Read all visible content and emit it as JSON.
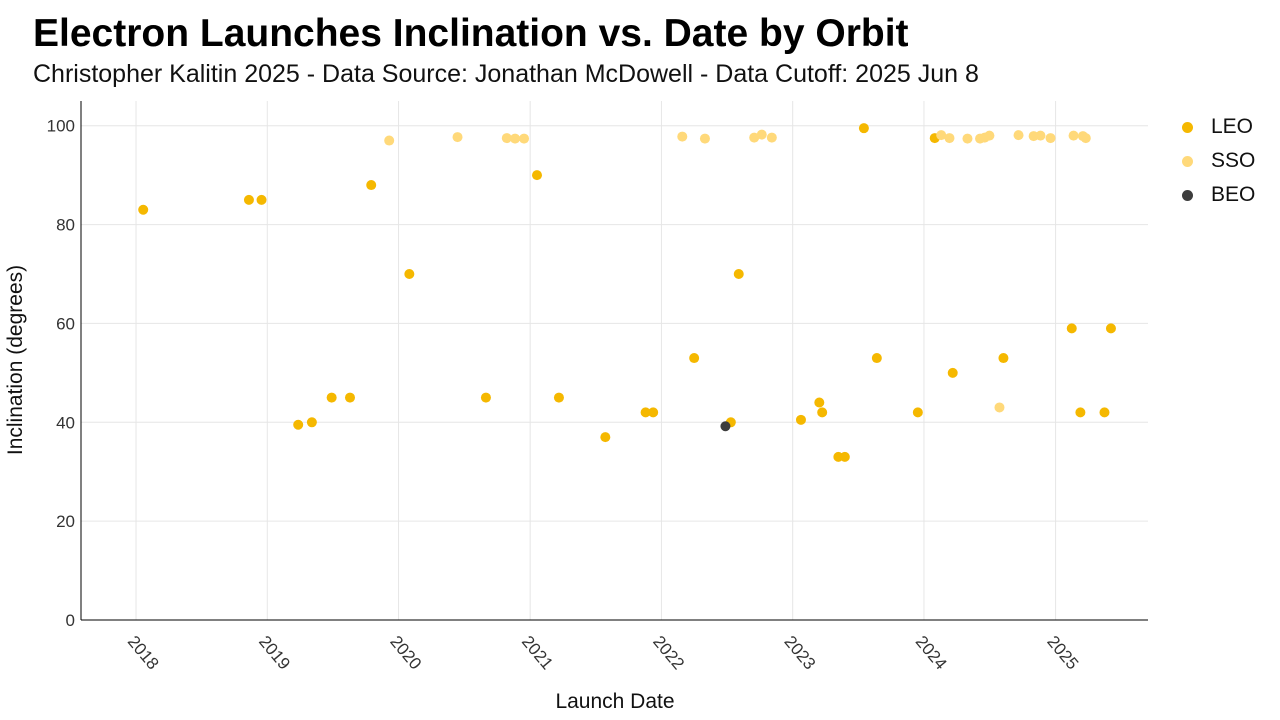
{
  "chart_data": {
    "type": "scatter",
    "title": "Electron Launches Inclination vs. Date by Orbit",
    "subtitle": "Christopher Kalitin 2025 - Data Source: Jonathan McDowell - Data Cutoff: 2025 Jun 8",
    "xlabel": "Launch Date",
    "ylabel": "Inclination (degrees)",
    "xlim": [
      "2017-08-01",
      "2025-09-15"
    ],
    "ylim": [
      0,
      105
    ],
    "x_ticks": [
      "2018",
      "2019",
      "2020",
      "2021",
      "2022",
      "2023",
      "2024",
      "2025"
    ],
    "y_ticks": [
      0,
      20,
      40,
      60,
      80,
      100
    ],
    "grid": true,
    "legend_position": "right",
    "series": [
      {
        "name": "LEO",
        "color": "#F5B800",
        "points": [
          [
            "2018-01-21",
            83
          ],
          [
            "2018-11-11",
            85
          ],
          [
            "2018-12-16",
            85
          ],
          [
            "2019-03-28",
            39.5
          ],
          [
            "2019-05-05",
            40
          ],
          [
            "2019-06-29",
            45
          ],
          [
            "2019-08-19",
            45
          ],
          [
            "2019-10-17",
            88
          ],
          [
            "2020-01-31",
            70
          ],
          [
            "2020-08-31",
            45
          ],
          [
            "2021-01-20",
            90
          ],
          [
            "2021-03-22",
            45
          ],
          [
            "2021-07-29",
            37
          ],
          [
            "2021-11-18",
            42
          ],
          [
            "2021-12-09",
            42
          ],
          [
            "2022-04-02",
            53
          ],
          [
            "2022-07-13",
            40
          ],
          [
            "2022-08-04",
            70
          ],
          [
            "2023-01-24",
            40.5
          ],
          [
            "2023-03-16",
            44
          ],
          [
            "2023-03-24",
            42
          ],
          [
            "2023-05-08",
            33
          ],
          [
            "2023-05-26",
            33
          ],
          [
            "2023-07-18",
            99.5
          ],
          [
            "2023-08-23",
            53
          ],
          [
            "2023-12-15",
            42
          ],
          [
            "2024-01-31",
            97.5
          ],
          [
            "2024-03-21",
            50
          ],
          [
            "2024-08-09",
            53
          ],
          [
            "2025-02-15",
            59
          ],
          [
            "2025-03-11",
            42
          ],
          [
            "2025-05-17",
            42
          ],
          [
            "2025-06-04",
            59
          ]
        ]
      },
      {
        "name": "SSO",
        "color": "#FFD97A",
        "points": [
          [
            "2019-12-06",
            97
          ],
          [
            "2020-06-13",
            97.7
          ],
          [
            "2020-10-28",
            97.5
          ],
          [
            "2020-11-20",
            97.4
          ],
          [
            "2020-12-15",
            97.4
          ],
          [
            "2022-02-28",
            97.8
          ],
          [
            "2022-05-02",
            97.4
          ],
          [
            "2022-09-16",
            97.6
          ],
          [
            "2022-10-07",
            98.2
          ],
          [
            "2022-11-04",
            97.6
          ],
          [
            "2024-02-18",
            98.1
          ],
          [
            "2024-03-12",
            97.5
          ],
          [
            "2024-05-01",
            97.4
          ],
          [
            "2024-06-05",
            97.4
          ],
          [
            "2024-06-18",
            97.6
          ],
          [
            "2024-07-01",
            98
          ],
          [
            "2024-07-29",
            43
          ],
          [
            "2024-09-20",
            98.1
          ],
          [
            "2024-11-01",
            97.9
          ],
          [
            "2024-11-20",
            98
          ],
          [
            "2024-12-18",
            97.5
          ],
          [
            "2025-02-20",
            98
          ],
          [
            "2025-03-18",
            97.9
          ],
          [
            "2025-03-26",
            97.5
          ]
        ]
      },
      {
        "name": "BEO",
        "color": "#3D3D3D",
        "points": [
          [
            "2022-06-28",
            39.2
          ]
        ]
      }
    ]
  }
}
